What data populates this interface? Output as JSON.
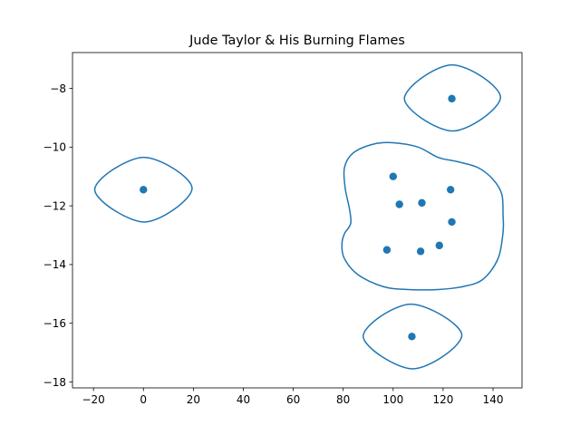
{
  "chart_data": {
    "type": "scatter",
    "title": "Jude Taylor & His Burning Flames",
    "xlabel": "",
    "ylabel": "",
    "xlim": [
      -28.4,
      151.6
    ],
    "ylim": [
      -18.2,
      -6.78
    ],
    "xticks": [
      -20,
      0,
      20,
      40,
      60,
      80,
      100,
      120,
      140
    ],
    "yticks": [
      -18,
      -16,
      -14,
      -12,
      -10,
      -8
    ],
    "grid": false,
    "color": "#1f77b4",
    "points": [
      {
        "x": 0.0,
        "y": -11.45
      },
      {
        "x": 123.5,
        "y": -8.35
      },
      {
        "x": 107.5,
        "y": -16.45
      },
      {
        "x": 100.0,
        "y": -11.0
      },
      {
        "x": 123.0,
        "y": -11.45
      },
      {
        "x": 102.5,
        "y": -11.95
      },
      {
        "x": 111.5,
        "y": -11.9
      },
      {
        "x": 123.5,
        "y": -12.55
      },
      {
        "x": 118.5,
        "y": -13.35
      },
      {
        "x": 97.5,
        "y": -13.5
      },
      {
        "x": 111.0,
        "y": -13.55
      }
    ],
    "clusters": [
      {
        "shape": "ellipse",
        "outline": [
          [
            0,
            -10.35
          ],
          [
            19.5,
            -11.4
          ],
          [
            0.5,
            -12.55
          ],
          [
            -19.5,
            -11.45
          ]
        ]
      },
      {
        "shape": "ellipse",
        "outline": [
          [
            123.5,
            -7.2
          ],
          [
            143,
            -8.3
          ],
          [
            124,
            -9.45
          ],
          [
            104.5,
            -8.35
          ]
        ]
      },
      {
        "shape": "ellipse",
        "outline": [
          [
            107,
            -15.35
          ],
          [
            127.5,
            -16.4
          ],
          [
            108,
            -17.55
          ],
          [
            88,
            -16.45
          ]
        ]
      },
      {
        "shape": "blob",
        "outline": [
          [
            100,
            -9.85
          ],
          [
            110,
            -10.0
          ],
          [
            118,
            -10.35
          ],
          [
            126,
            -10.5
          ],
          [
            134,
            -10.7
          ],
          [
            140,
            -11.1
          ],
          [
            143.5,
            -11.6
          ],
          [
            144,
            -12.3
          ],
          [
            144,
            -12.9
          ],
          [
            142,
            -13.8
          ],
          [
            136,
            -14.5
          ],
          [
            128,
            -14.75
          ],
          [
            118,
            -14.85
          ],
          [
            106,
            -14.85
          ],
          [
            96,
            -14.75
          ],
          [
            86,
            -14.35
          ],
          [
            80.5,
            -13.8
          ],
          [
            79.5,
            -13.3
          ],
          [
            80.5,
            -12.95
          ],
          [
            83,
            -12.6
          ],
          [
            82.5,
            -12.1
          ],
          [
            80.8,
            -11.4
          ],
          [
            80.5,
            -10.7
          ],
          [
            84,
            -10.2
          ],
          [
            92,
            -9.9
          ]
        ]
      }
    ]
  }
}
